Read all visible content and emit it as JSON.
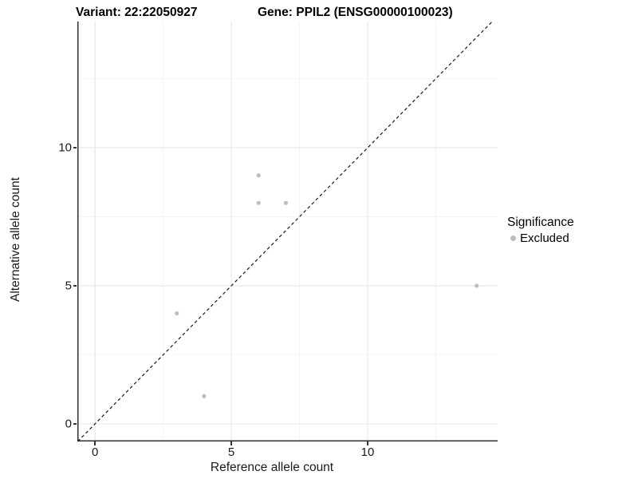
{
  "chart_data": {
    "type": "scatter",
    "titles": {
      "left": "Variant: 22:22050927",
      "right": "Gene: PPIL2 (ENSG00000100023)"
    },
    "xlabel": "Reference allele count",
    "ylabel": "Alternative allele count",
    "x_ticks": [
      0,
      5,
      10
    ],
    "y_ticks": [
      0,
      5,
      10
    ],
    "x_minor_ticks": [
      2.5,
      7.5,
      12.5
    ],
    "y_minor_ticks": [
      2.5,
      7.5,
      12.5
    ],
    "xlim": [
      -0.65,
      14.77
    ],
    "ylim": [
      -0.64,
      14.57
    ],
    "grid": true,
    "identity_line": {
      "style": "dashed",
      "slope": 1,
      "intercept": 0,
      "color": "#1a1a1a"
    },
    "series": [
      {
        "name": "Excluded",
        "color": "#bdbdbd",
        "points": [
          [
            3,
            4
          ],
          [
            4,
            1
          ],
          [
            6,
            8
          ],
          [
            6,
            9
          ],
          [
            7,
            8
          ],
          [
            14,
            5
          ]
        ]
      }
    ],
    "legend": {
      "title": "Significance",
      "position": "right",
      "items": [
        {
          "label": "Excluded",
          "color": "#bdbdbd"
        }
      ]
    },
    "colors": {
      "grid_major": "#e6e6e6",
      "grid_minor": "#f4f4f4",
      "axis_line": "#2e2e2e",
      "text": "#1a1a1a"
    }
  }
}
